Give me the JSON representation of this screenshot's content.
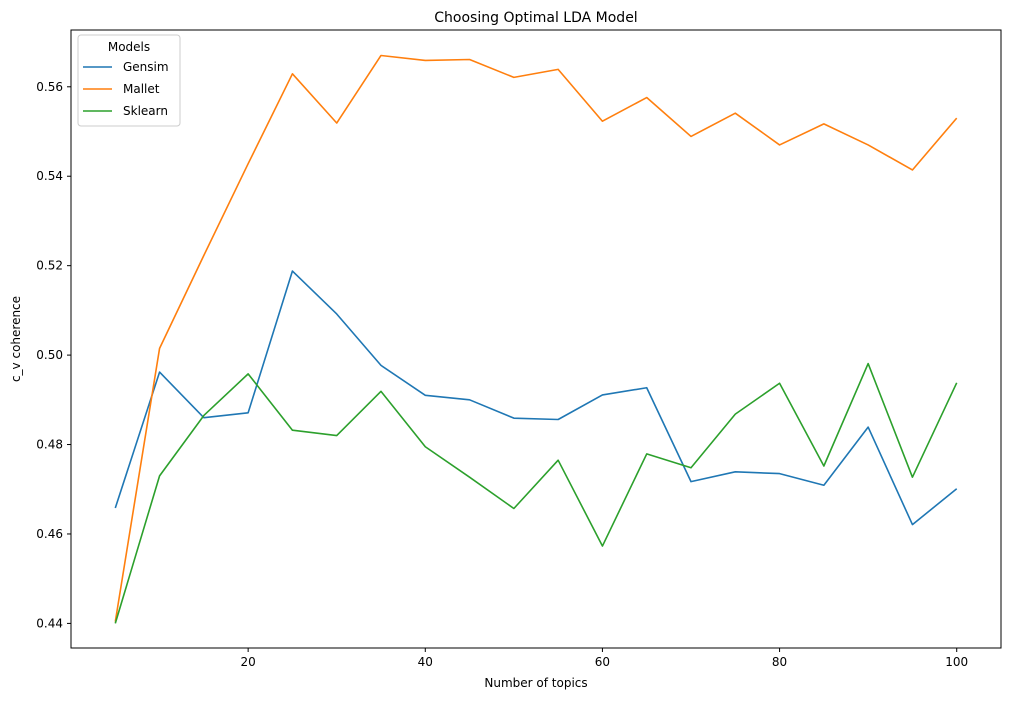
{
  "chart_data": {
    "type": "line",
    "title": "Choosing Optimal LDA Model",
    "xlabel": "Number of topics",
    "ylabel": "c_v coherence",
    "x": [
      5,
      10,
      15,
      20,
      25,
      30,
      35,
      40,
      45,
      50,
      55,
      60,
      65,
      70,
      75,
      80,
      85,
      90,
      95,
      100
    ],
    "xlim": [
      0,
      105
    ],
    "ylim": [
      0.4345,
      0.5727
    ],
    "xticks": [
      20,
      40,
      60,
      80,
      100
    ],
    "yticks": [
      0.44,
      0.46,
      0.48,
      0.5,
      0.52,
      0.54,
      0.56
    ],
    "xtick_labels": [
      "20",
      "40",
      "60",
      "80",
      "100"
    ],
    "ytick_labels": [
      "0.44",
      "0.46",
      "0.48",
      "0.50",
      "0.52",
      "0.54",
      "0.56"
    ],
    "grid": false,
    "legend": {
      "title": "Models",
      "placement": "top-left"
    },
    "series": [
      {
        "name": "Gensim",
        "color": "#1f77b4",
        "values": [
          0.4658,
          0.4962,
          0.486,
          0.4871,
          0.5188,
          0.5092,
          0.4977,
          0.491,
          0.49,
          0.4859,
          0.4856,
          0.4911,
          0.4927,
          0.4717,
          0.4739,
          0.4735,
          0.4709,
          0.4839,
          0.4621,
          0.4701
        ]
      },
      {
        "name": "Mallet",
        "color": "#ff7f0e",
        "values": [
          0.4404,
          0.5015,
          0.5223,
          0.5428,
          0.5629,
          0.5519,
          0.567,
          0.5659,
          0.5661,
          0.5621,
          0.5639,
          0.5523,
          0.5576,
          0.5489,
          0.5541,
          0.547,
          0.5517,
          0.547,
          0.5414,
          0.553
        ]
      },
      {
        "name": "Sklearn",
        "color": "#2ca02c",
        "values": [
          0.44,
          0.473,
          0.4865,
          0.4958,
          0.4832,
          0.482,
          0.4919,
          0.4795,
          0.4727,
          0.4657,
          0.4765,
          0.4573,
          0.4779,
          0.4748,
          0.4868,
          0.4937,
          0.4752,
          0.4981,
          0.4727,
          0.4938
        ]
      }
    ]
  }
}
